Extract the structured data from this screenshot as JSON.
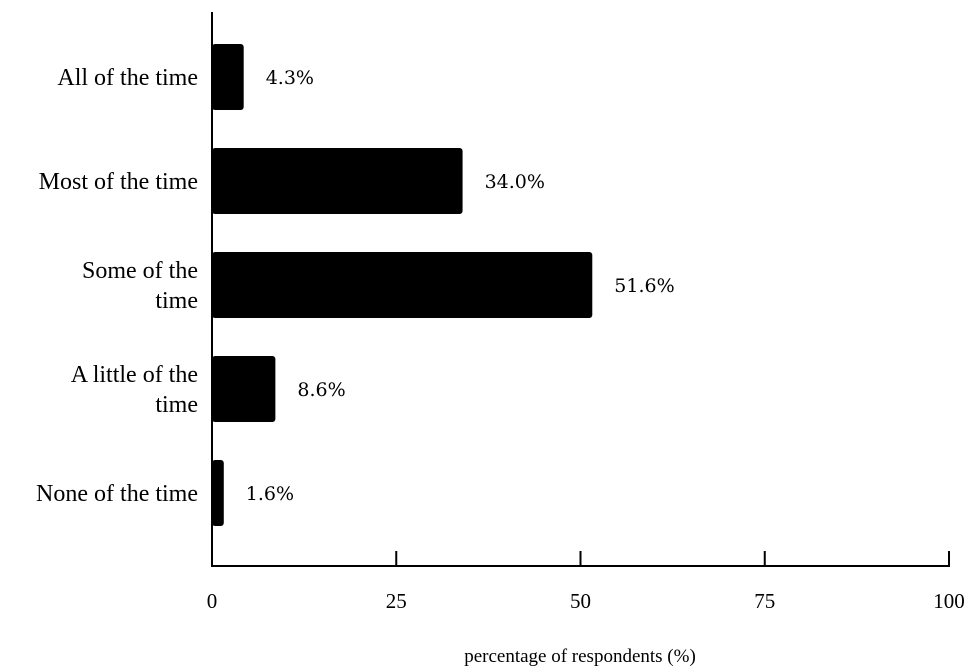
{
  "chart_data": {
    "type": "bar",
    "orientation": "horizontal",
    "categories": [
      [
        "All of the time"
      ],
      [
        "Most of the time"
      ],
      [
        "Some of the",
        "time"
      ],
      [
        "A little of the",
        "time"
      ],
      [
        "None of the time"
      ]
    ],
    "values": [
      4.3,
      34.0,
      51.6,
      8.6,
      1.6
    ],
    "value_labels": [
      "4.3%",
      "34.0%",
      "51.6%",
      "8.6%",
      "1.6%"
    ],
    "xlabel": "percentage of respondents (%)",
    "xlim": [
      0,
      100
    ],
    "xticks": [
      0,
      25,
      50,
      75,
      100
    ],
    "grid": false,
    "bar_color": "#000000"
  }
}
